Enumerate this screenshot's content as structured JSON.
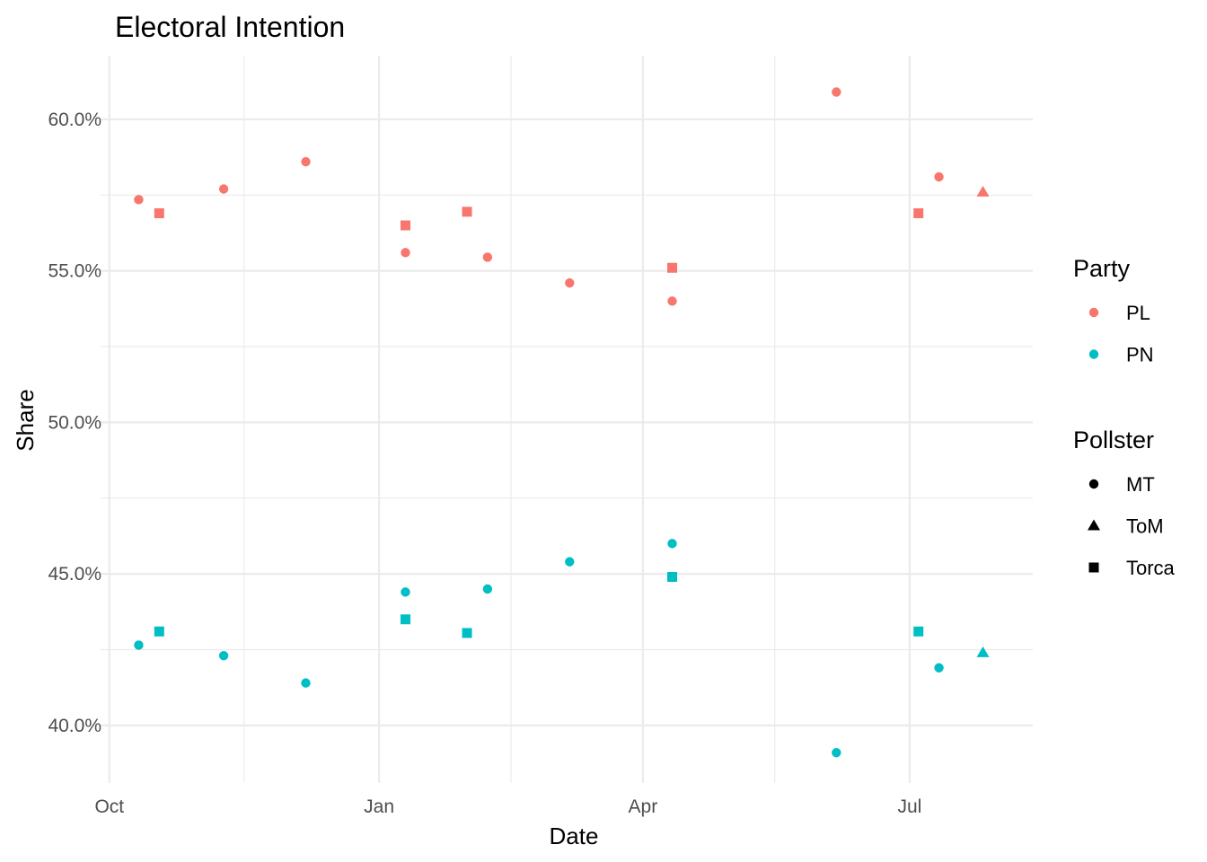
{
  "chart_data": {
    "type": "scatter",
    "title": "Electoral Intention",
    "xlabel": "Date",
    "ylabel": "Share",
    "x_ticks": [
      {
        "value": "2021-10-01",
        "label": "Oct"
      },
      {
        "value": "2022-01-01",
        "label": "Jan"
      },
      {
        "value": "2022-04-01",
        "label": "Apr"
      },
      {
        "value": "2022-07-01",
        "label": "Jul"
      }
    ],
    "y_ticks": [
      {
        "value": 0.4,
        "label": "40.0%"
      },
      {
        "value": 0.45,
        "label": "45.0%"
      },
      {
        "value": 0.5,
        "label": "50.0%"
      },
      {
        "value": 0.55,
        "label": "55.0%"
      },
      {
        "value": 0.6,
        "label": "60.0%"
      }
    ],
    "xlim": [
      "2021-09-28",
      "2022-08-12"
    ],
    "ylim": [
      0.381,
      0.621
    ],
    "grid": true,
    "legend_position": "right",
    "legends": [
      {
        "title": "Party",
        "items": [
          {
            "label": "PL",
            "color": "#F8766D",
            "shape": "circle"
          },
          {
            "label": "PN",
            "color": "#00BFC4",
            "shape": "circle"
          }
        ]
      },
      {
        "title": "Pollster",
        "items": [
          {
            "label": "MT",
            "color": "#000000",
            "shape": "circle"
          },
          {
            "label": "ToM",
            "color": "#000000",
            "shape": "triangle"
          },
          {
            "label": "Torca",
            "color": "#000000",
            "shape": "square"
          }
        ]
      }
    ],
    "colors": {
      "PL": "#F8766D",
      "PN": "#00BFC4"
    },
    "shapes": {
      "MT": "circle",
      "ToM": "triangle",
      "Torca": "square"
    },
    "points": [
      {
        "date": "2021-10-11",
        "party": "PL",
        "pollster": "MT",
        "share": 0.5735
      },
      {
        "date": "2021-10-11",
        "party": "PN",
        "pollster": "MT",
        "share": 0.4265
      },
      {
        "date": "2021-10-18",
        "party": "PL",
        "pollster": "Torca",
        "share": 0.569
      },
      {
        "date": "2021-10-18",
        "party": "PN",
        "pollster": "Torca",
        "share": 0.431
      },
      {
        "date": "2021-11-09",
        "party": "PL",
        "pollster": "MT",
        "share": 0.577
      },
      {
        "date": "2021-11-09",
        "party": "PN",
        "pollster": "MT",
        "share": 0.423
      },
      {
        "date": "2021-12-07",
        "party": "PL",
        "pollster": "MT",
        "share": 0.586
      },
      {
        "date": "2021-12-07",
        "party": "PN",
        "pollster": "MT",
        "share": 0.414
      },
      {
        "date": "2022-01-10",
        "party": "PL",
        "pollster": "Torca",
        "share": 0.565
      },
      {
        "date": "2022-01-10",
        "party": "PN",
        "pollster": "Torca",
        "share": 0.435
      },
      {
        "date": "2022-01-10",
        "party": "PL",
        "pollster": "MT",
        "share": 0.556
      },
      {
        "date": "2022-01-10",
        "party": "PN",
        "pollster": "MT",
        "share": 0.444
      },
      {
        "date": "2022-01-31",
        "party": "PL",
        "pollster": "Torca",
        "share": 0.5695
      },
      {
        "date": "2022-01-31",
        "party": "PN",
        "pollster": "Torca",
        "share": 0.4305
      },
      {
        "date": "2022-02-07",
        "party": "PL",
        "pollster": "MT",
        "share": 0.5545
      },
      {
        "date": "2022-02-07",
        "party": "PN",
        "pollster": "MT",
        "share": 0.445
      },
      {
        "date": "2022-03-07",
        "party": "PL",
        "pollster": "MT",
        "share": 0.546
      },
      {
        "date": "2022-03-07",
        "party": "PN",
        "pollster": "MT",
        "share": 0.454
      },
      {
        "date": "2022-04-11",
        "party": "PL",
        "pollster": "Torca",
        "share": 0.551
      },
      {
        "date": "2022-04-11",
        "party": "PN",
        "pollster": "Torca",
        "share": 0.449
      },
      {
        "date": "2022-04-11",
        "party": "PL",
        "pollster": "MT",
        "share": 0.54
      },
      {
        "date": "2022-04-11",
        "party": "PN",
        "pollster": "MT",
        "share": 0.46
      },
      {
        "date": "2022-06-06",
        "party": "PL",
        "pollster": "MT",
        "share": 0.609
      },
      {
        "date": "2022-06-06",
        "party": "PN",
        "pollster": "MT",
        "share": 0.391
      },
      {
        "date": "2022-07-04",
        "party": "PL",
        "pollster": "Torca",
        "share": 0.569
      },
      {
        "date": "2022-07-04",
        "party": "PN",
        "pollster": "Torca",
        "share": 0.431
      },
      {
        "date": "2022-07-11",
        "party": "PL",
        "pollster": "MT",
        "share": 0.581
      },
      {
        "date": "2022-07-11",
        "party": "PN",
        "pollster": "MT",
        "share": 0.419
      },
      {
        "date": "2022-07-26",
        "party": "PL",
        "pollster": "ToM",
        "share": 0.576
      },
      {
        "date": "2022-07-26",
        "party": "PN",
        "pollster": "ToM",
        "share": 0.424
      }
    ]
  }
}
